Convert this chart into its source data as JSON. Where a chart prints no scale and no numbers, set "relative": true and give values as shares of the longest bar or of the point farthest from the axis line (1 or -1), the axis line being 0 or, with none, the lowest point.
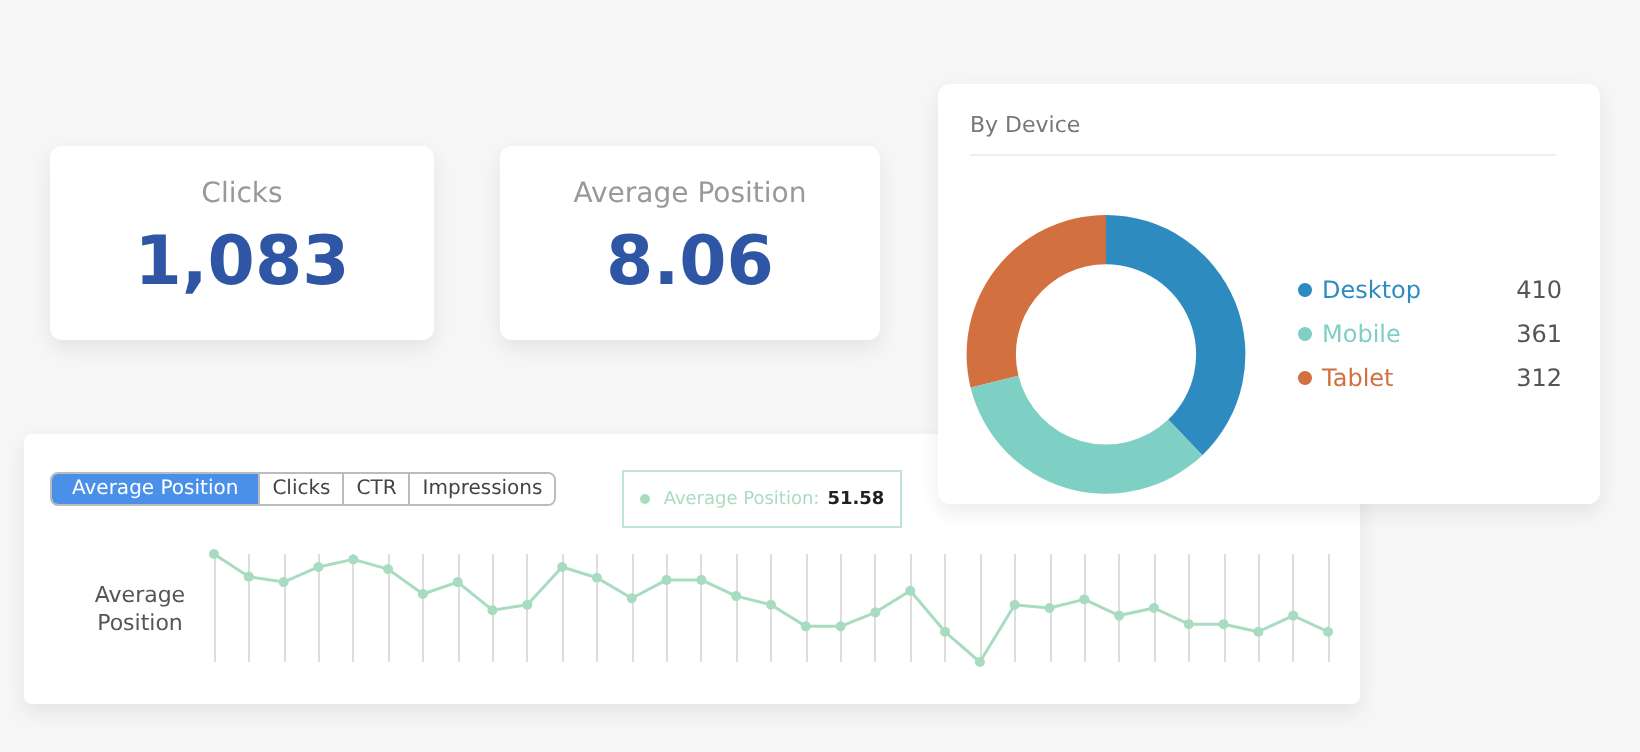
{
  "chart_data": [
    {
      "type": "other",
      "title": "Clicks",
      "annotations": [
        "1,083"
      ]
    },
    {
      "type": "other",
      "title": "Average Position",
      "annotations": [
        "8.06"
      ]
    },
    {
      "type": "donut",
      "title": "By Device",
      "categories": [
        "Desktop",
        "Mobile",
        "Tablet"
      ],
      "values": [
        410,
        361,
        312
      ],
      "colors": [
        "#2e8bc0",
        "#7ecfc4",
        "#d2703f"
      ],
      "legend": "right",
      "data_labels": true
    },
    {
      "type": "line",
      "relative": true,
      "ylabel": "Average Position",
      "grid": "x",
      "marker": "circle",
      "annotations": [
        "Clicks",
        "CTR",
        "Impressions",
        "Average Position: 51.58"
      ],
      "categories": [
        null,
        null,
        null,
        null,
        null,
        null,
        null,
        null,
        null,
        null,
        null,
        null,
        null,
        null,
        null,
        null,
        null,
        null,
        null,
        null,
        null,
        null,
        null,
        null,
        null,
        null,
        null,
        null,
        null,
        null,
        null,
        null,
        null
      ],
      "series": [
        {
          "name": "Average Position",
          "color": "#a8dcc0",
          "values": [
            1.0,
            0.79,
            0.74,
            0.88,
            0.95,
            0.86,
            0.63,
            0.74,
            0.48,
            0.53,
            0.88,
            0.78,
            0.59,
            0.76,
            0.76,
            0.61,
            0.53,
            0.33,
            0.33,
            0.46,
            0.66,
            0.28,
            0,
            0.53,
            0.5,
            0.58,
            0.43,
            0.5,
            0.35,
            0.35,
            0.28,
            0.43,
            0.28
          ]
        }
      ]
    }
  ]
}
